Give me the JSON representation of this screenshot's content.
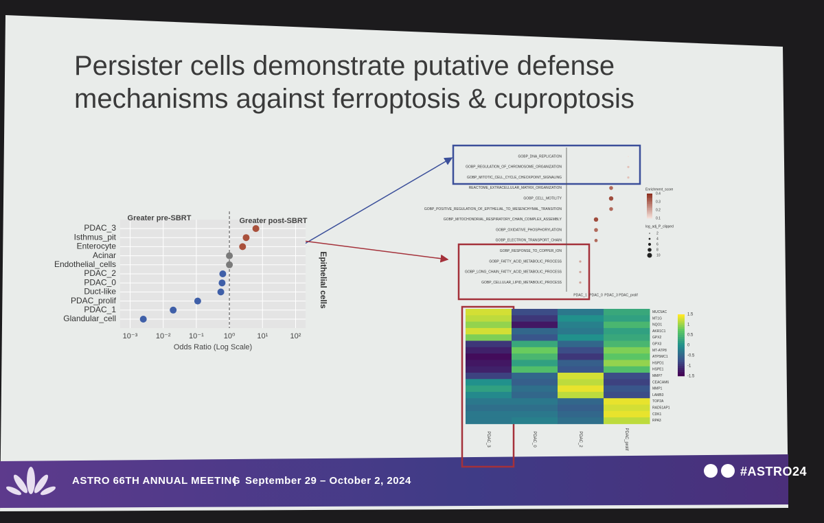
{
  "title": "Persister cells demonstrate putative defense mechanisms against ferroptosis & cuproptosis",
  "footer": {
    "meeting": "ASTRO 66TH ANNUAL MEETING",
    "separator": "|",
    "dates": "September 29 – October 2, 2024",
    "hashtag": "#ASTRO24"
  },
  "chart_data": [
    {
      "type": "scatter",
      "annotations": [
        "Greater pre-SBRT",
        "Greater post-SBRT"
      ],
      "group_label": "Epithelial cells",
      "x_label": "Odds Ratio (Log Scale)",
      "categories": [
        "PDAC_3",
        "Isthmus_pit",
        "Enterocyte",
        "Acinar",
        "Endothelial_cells",
        "PDAC_2",
        "PDAC_0",
        "Duct-like",
        "PDAC_prolif",
        "PDAC_1",
        "Glandular_cell"
      ],
      "values": [
        6.3,
        3.2,
        2.5,
        1.0,
        1.0,
        0.63,
        0.6,
        0.55,
        0.11,
        0.02,
        0.0025
      ],
      "point_colors": [
        "#a9503b",
        "#a9503b",
        "#a9503b",
        "#7a7a7a",
        "#7a7a7a",
        "#3f5fa8",
        "#3f5fa8",
        "#3f5fa8",
        "#3f5fa8",
        "#3f5fa8",
        "#3f5fa8"
      ],
      "xlim": [
        0.0005,
        200
      ],
      "log_x": true,
      "xticks": [
        {
          "value": 0.001,
          "label": "10⁻³"
        },
        {
          "value": 0.01,
          "label": "10⁻²"
        },
        {
          "value": 0.1,
          "label": "10⁻¹"
        },
        {
          "value": 1,
          "label": "10⁰"
        },
        {
          "value": 10,
          "label": "10¹"
        },
        {
          "value": 100,
          "label": "10²"
        }
      ],
      "reference_line": 1,
      "grid": true
    },
    {
      "type": "dot",
      "categories": [
        "GOBP_DNA_REPLICATION",
        "GOBP_REGULATION_OF_CHROMOSOME_ORGANIZATION",
        "GOBP_MITOTIC_CELL_CYCLE_CHECKPOINT_SIGNALING",
        "REACTOME_EXTRACELLULAR_MATRIX_ORGANIZATION",
        "GOBP_CELL_MOTILITY",
        "GOBP_POSITIVE_REGULATION_OF_EPITHELIAL_TO_MESENCHYMAL_TRANSITION",
        "GOBP_MITOCHONDRIAL_RESPIRATORY_CHAIN_COMPLEX_ASSEMBLY",
        "GOBP_OXIDATIVE_PHOSPHORYLATION",
        "GOBP_ELECTRON_TRANSPORT_CHAIN",
        "GOBP_RESPONSE_TO_COPPER_ION",
        "GOBP_FATTY_ACID_METABOLIC_PROCESS",
        "GOBP_LONG_CHAIN_FATTY_ACID_METABOLIC_PROCESS",
        "GOBP_CELLULAR_LIPID_METABOLIC_PROCESS"
      ],
      "series": [
        {
          "name": "PDAC_1",
          "values": [
            null,
            null,
            null,
            null,
            null,
            null,
            null,
            null,
            null,
            0.1,
            0.2,
            0.2,
            0.2
          ],
          "sizes": [
            null,
            null,
            null,
            null,
            null,
            null,
            null,
            null,
            null,
            2,
            4,
            4,
            4
          ]
        },
        {
          "name": "PDAC_0",
          "values": [
            null,
            null,
            null,
            null,
            null,
            null,
            0.35,
            0.3,
            0.3,
            null,
            null,
            null,
            null
          ],
          "sizes": [
            null,
            null,
            null,
            null,
            null,
            null,
            8,
            7,
            6,
            null,
            null,
            null,
            null
          ]
        },
        {
          "name": "PDAC_3",
          "values": [
            null,
            null,
            null,
            0.3,
            0.35,
            0.3,
            null,
            null,
            null,
            null,
            null,
            null,
            null
          ],
          "sizes": [
            null,
            null,
            null,
            7,
            8,
            7,
            null,
            null,
            null,
            null,
            null,
            null,
            null
          ]
        },
        {
          "name": "PDAC_prolif",
          "values": [
            0.1,
            0.15,
            0.15,
            null,
            null,
            null,
            null,
            null,
            null,
            null,
            null,
            null,
            null
          ],
          "sizes": [
            2,
            4,
            4,
            null,
            null,
            null,
            null,
            null,
            null,
            null,
            null,
            null,
            null
          ]
        }
      ],
      "color_legend_title": "Enrichment_score",
      "color_ticks": [
        0.4,
        0.3,
        0.2,
        0.1
      ],
      "colors": [
        "#f3ddd6",
        "#8e2f1e"
      ],
      "size_legend_title": "log_adj_P_clipped",
      "size_ticks": [
        2,
        4,
        6,
        8,
        10
      ]
    },
    {
      "type": "heatmap",
      "rows": [
        "MUC5AC",
        "MT1G",
        "NQO1",
        "AKR1C1",
        "GPX2",
        "GPX3",
        "MT-ATP8",
        "ATP5MC1",
        "HSPD1",
        "HSPE1",
        "MMP7",
        "CEACAM6",
        "MMP1",
        "LAMB3",
        "TOP2A",
        "RAD51AP1",
        "CDK1",
        "RPA3"
      ],
      "series": [
        {
          "name": "PDAC_3",
          "values": [
            1.3,
            1.2,
            1.0,
            1.3,
            0.9,
            -1.0,
            -1.2,
            -1.4,
            -1.3,
            -1.2,
            -0.9,
            0.0,
            0.2,
            -0.1,
            -0.3,
            -0.4,
            -0.3,
            -0.3
          ]
        },
        {
          "name": "PDAC_0",
          "values": [
            -0.8,
            -1.0,
            -1.3,
            -0.5,
            -0.7,
            0.3,
            0.8,
            0.5,
            0.2,
            0.6,
            -0.5,
            -0.6,
            -0.4,
            -0.5,
            -0.3,
            -0.4,
            -0.3,
            -0.2
          ]
        },
        {
          "name": "PDAC_2",
          "values": [
            -0.3,
            0.0,
            -0.2,
            -0.3,
            0.0,
            -0.5,
            -0.8,
            -1.0,
            -0.6,
            -0.7,
            1.3,
            1.2,
            1.4,
            1.2,
            -0.5,
            -0.6,
            -0.5,
            -0.4
          ]
        },
        {
          "name": "PDAC_prolif",
          "values": [
            0.3,
            0.2,
            0.5,
            0.2,
            0.3,
            0.5,
            0.9,
            0.7,
            1.0,
            0.6,
            -0.8,
            -0.9,
            -0.7,
            -0.8,
            1.4,
            1.3,
            1.4,
            1.2
          ]
        }
      ],
      "color_ticks": [
        1.5,
        1,
        0.5,
        0,
        -0.5,
        -1,
        -1.5
      ],
      "colormap": "viridis"
    }
  ]
}
